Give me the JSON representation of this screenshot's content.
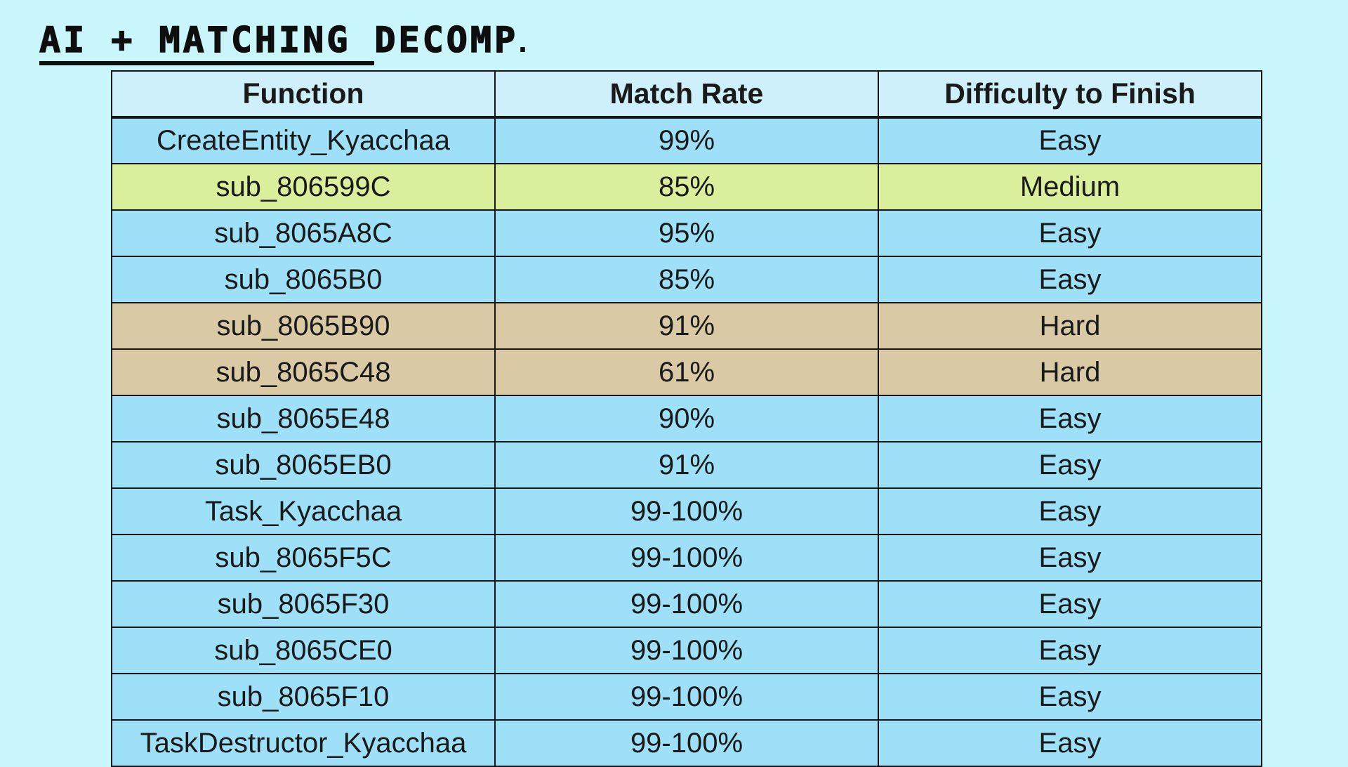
{
  "page": {
    "title": "AI + MATCHING DECOMP",
    "title_period": "."
  },
  "table": {
    "columns": [
      "Function",
      "Match Rate",
      "Difficulty to Finish"
    ],
    "rows": [
      {
        "function": "CreateEntity_Kyacchaa",
        "match_rate": "99%",
        "difficulty": "Easy",
        "highlight": "blue"
      },
      {
        "function": "sub_806599C",
        "match_rate": "85%",
        "difficulty": "Medium",
        "highlight": "green"
      },
      {
        "function": "sub_8065A8C",
        "match_rate": "95%",
        "difficulty": "Easy",
        "highlight": "blue"
      },
      {
        "function": "sub_8065B0",
        "match_rate": "85%",
        "difficulty": "Easy",
        "highlight": "blue"
      },
      {
        "function": "sub_8065B90",
        "match_rate": "91%",
        "difficulty": "Hard",
        "highlight": "tan"
      },
      {
        "function": "sub_8065C48",
        "match_rate": "61%",
        "difficulty": "Hard",
        "highlight": "tan"
      },
      {
        "function": "sub_8065E48",
        "match_rate": "90%",
        "difficulty": "Easy",
        "highlight": "blue"
      },
      {
        "function": "sub_8065EB0",
        "match_rate": "91%",
        "difficulty": "Easy",
        "highlight": "blue"
      },
      {
        "function": "Task_Kyacchaa",
        "match_rate": "99-100%",
        "difficulty": "Easy",
        "highlight": "blue"
      },
      {
        "function": "sub_8065F5C",
        "match_rate": "99-100%",
        "difficulty": "Easy",
        "highlight": "blue"
      },
      {
        "function": "sub_8065F30",
        "match_rate": "99-100%",
        "difficulty": "Easy",
        "highlight": "blue"
      },
      {
        "function": "sub_8065CE0",
        "match_rate": "99-100%",
        "difficulty": "Easy",
        "highlight": "blue"
      },
      {
        "function": "sub_8065F10",
        "match_rate": "99-100%",
        "difficulty": "Easy",
        "highlight": "blue"
      },
      {
        "function": "TaskDestructor_Kyacchaa",
        "match_rate": "99-100%",
        "difficulty": "Easy",
        "highlight": "blue"
      }
    ]
  },
  "colors": {
    "background": "#c9f6fb",
    "header_bg": "#cdf0fb",
    "row_blue": "#9de0f8",
    "row_green": "#d9ef9c",
    "row_tan": "#d9c9a4",
    "border": "#161616",
    "text": "#1a1a1a"
  }
}
